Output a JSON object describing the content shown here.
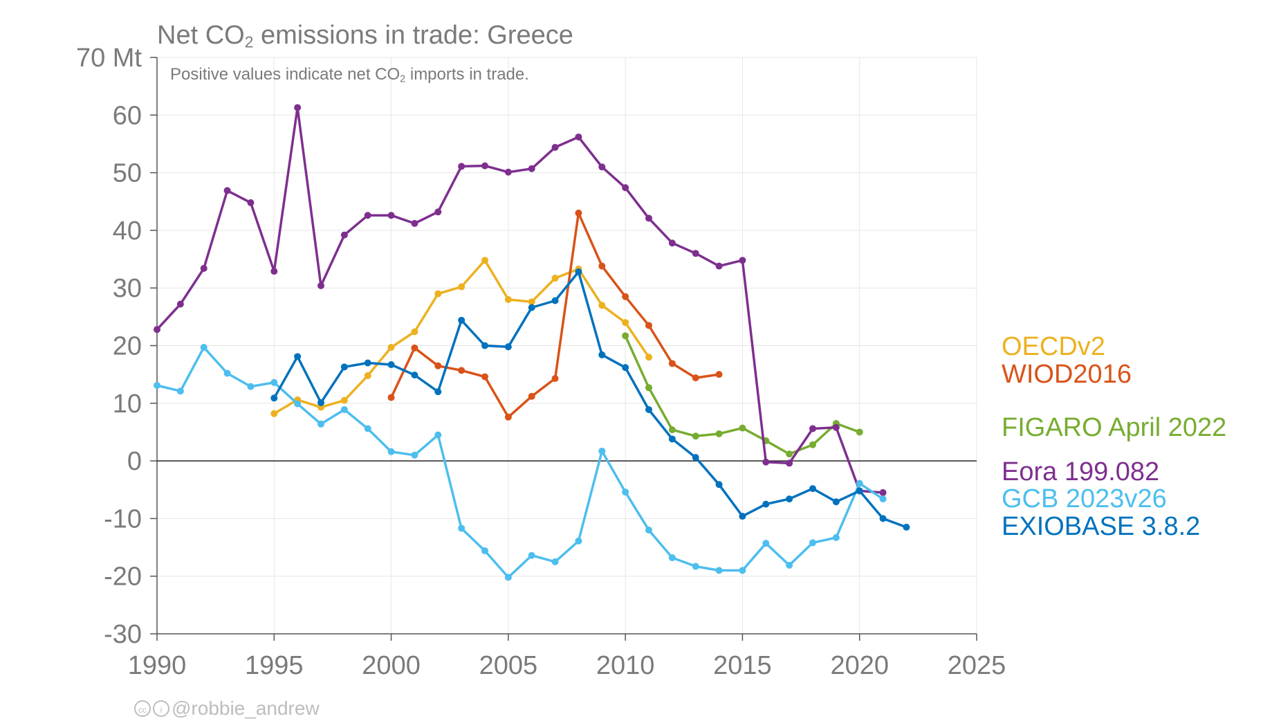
{
  "title": {
    "pre": "Net CO",
    "sub": "2",
    "post": " emissions in trade: Greece"
  },
  "subtitle": {
    "pre": "Positive values indicate net CO",
    "sub": "2",
    "post": " imports in trade."
  },
  "credit": {
    "icons": "cc",
    "icons2": "i",
    "handle": "@robbie_andrew"
  },
  "chart_data": {
    "type": "line",
    "title": "Net CO2 emissions in trade: Greece",
    "xlabel": "",
    "ylabel": "",
    "xlim": [
      1990,
      2025
    ],
    "ylim": [
      -30,
      70
    ],
    "x_ticks": [
      1990,
      1995,
      2000,
      2005,
      2010,
      2015,
      2020,
      2025
    ],
    "y_ticks": [
      -30,
      -20,
      -10,
      0,
      10,
      20,
      30,
      40,
      50,
      60,
      70
    ],
    "y_tick_labels": [
      "-30",
      "-20",
      "-10",
      "0",
      "10",
      "20",
      "30",
      "40",
      "50",
      "60",
      "70 Mt"
    ],
    "grid": true,
    "legend_position": "right",
    "series": [
      {
        "name": "OECDv2",
        "color": "#EDB120",
        "x": [
          1995,
          1996,
          1997,
          1998,
          1999,
          2000,
          2001,
          2002,
          2003,
          2004,
          2005,
          2006,
          2007,
          2008,
          2009,
          2010,
          2011
        ],
        "y": [
          8.2,
          10.6,
          9.3,
          10.5,
          14.8,
          19.7,
          22.4,
          29.0,
          30.2,
          34.8,
          28.0,
          27.6,
          31.7,
          33.3,
          27.0,
          24.0,
          18.0
        ]
      },
      {
        "name": "WIOD2016",
        "color": "#D95319",
        "x": [
          2000,
          2001,
          2002,
          2003,
          2004,
          2005,
          2006,
          2007,
          2008,
          2009,
          2010,
          2011,
          2012,
          2013,
          2014
        ],
        "y": [
          11.0,
          19.6,
          16.5,
          15.7,
          14.6,
          7.6,
          11.2,
          14.3,
          43.0,
          33.8,
          28.5,
          23.5,
          16.9,
          14.4,
          15.0
        ]
      },
      {
        "name": "FIGARO April 2022",
        "color": "#77AC30",
        "x": [
          2010,
          2011,
          2012,
          2013,
          2014,
          2015,
          2016,
          2017,
          2018,
          2019,
          2020
        ],
        "y": [
          21.7,
          12.7,
          5.4,
          4.3,
          4.7,
          5.7,
          3.5,
          1.2,
          2.8,
          6.5,
          5.0
        ]
      },
      {
        "name": "Eora 199.082",
        "color": "#7E2F8E",
        "x": [
          1990,
          1991,
          1992,
          1993,
          1994,
          1995,
          1996,
          1997,
          1998,
          1999,
          2000,
          2001,
          2002,
          2003,
          2004,
          2005,
          2006,
          2007,
          2008,
          2009,
          2010,
          2011,
          2012,
          2013,
          2014,
          2015,
          2016,
          2017,
          2018,
          2019,
          2020,
          2021
        ],
        "y": [
          22.8,
          27.2,
          33.4,
          46.9,
          44.8,
          32.9,
          61.3,
          30.4,
          39.2,
          42.6,
          42.6,
          41.2,
          43.2,
          51.1,
          51.2,
          50.1,
          50.7,
          54.4,
          56.2,
          51.0,
          47.4,
          42.1,
          37.8,
          36.0,
          33.8,
          34.8,
          -0.2,
          -0.4,
          5.6,
          5.8,
          -5.2,
          -5.5
        ]
      },
      {
        "name": "GCB 2023v26",
        "color": "#4DBEEE",
        "x": [
          1990,
          1991,
          1992,
          1993,
          1994,
          1995,
          1996,
          1997,
          1998,
          1999,
          2000,
          2001,
          2002,
          2003,
          2004,
          2005,
          2006,
          2007,
          2008,
          2009,
          2010,
          2011,
          2012,
          2013,
          2014,
          2015,
          2016,
          2017,
          2018,
          2019,
          2020,
          2021
        ],
        "y": [
          13.1,
          12.1,
          19.7,
          15.2,
          12.9,
          13.6,
          9.9,
          6.4,
          8.9,
          5.6,
          1.6,
          1.0,
          4.5,
          -11.7,
          -15.6,
          -20.2,
          -16.4,
          -17.5,
          -13.9,
          1.7,
          -5.4,
          -12.0,
          -16.8,
          -18.3,
          -19.0,
          -19.0,
          -14.3,
          -18.1,
          -14.2,
          -13.3,
          -3.9,
          -6.6
        ]
      },
      {
        "name": "EXIOBASE 3.8.2",
        "color": "#0072BD",
        "x": [
          1995,
          1996,
          1997,
          1998,
          1999,
          2000,
          2001,
          2002,
          2003,
          2004,
          2005,
          2006,
          2007,
          2008,
          2009,
          2010,
          2011,
          2012,
          2013,
          2014,
          2015,
          2016,
          2017,
          2018,
          2019,
          2020,
          2021,
          2022
        ],
        "y": [
          10.9,
          18.1,
          10.1,
          16.3,
          17.0,
          16.7,
          14.9,
          12.0,
          24.4,
          20.0,
          19.8,
          26.6,
          27.8,
          32.8,
          18.4,
          16.2,
          8.9,
          3.8,
          0.6,
          -4.1,
          -9.6,
          -7.5,
          -6.6,
          -4.8,
          -7.1,
          -5.2,
          -10.0,
          -11.5
        ]
      }
    ]
  }
}
